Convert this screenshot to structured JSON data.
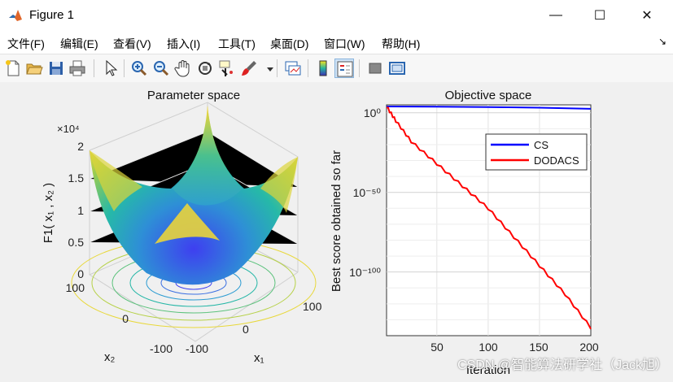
{
  "window": {
    "title": "Figure 1",
    "controls": {
      "minimize": "—",
      "maximize": "☐",
      "close": "✕"
    }
  },
  "menu": [
    {
      "label": "文件(F)"
    },
    {
      "label": "编辑(E)"
    },
    {
      "label": "查看(V)"
    },
    {
      "label": "插入(I)"
    },
    {
      "label": "工具(T)"
    },
    {
      "label": "桌面(D)"
    },
    {
      "label": "窗口(W)"
    },
    {
      "label": "帮助(H)"
    }
  ],
  "toolbar": [
    "new-figure-icon",
    "open-file-icon",
    "save-icon",
    "print-icon",
    "select-arrow-icon",
    "zoom-in-icon",
    "zoom-out-icon",
    "pan-hand-icon",
    "rotate-3d-icon",
    "data-cursor-icon",
    "brush-icon",
    "link-plot-icon",
    "colorbar-icon",
    "legend-icon",
    "hide-plot-tools-icon",
    "show-plot-tools-icon"
  ],
  "left_plot": {
    "title": "Parameter space",
    "zlabel": "F1( x₁ , x₂ )",
    "zscale_label": "×10⁴",
    "zticks": [
      "2",
      "1.5",
      "1",
      "0.5",
      "0"
    ],
    "x1_ticks": [
      "-100",
      "0",
      "100"
    ],
    "x2_ticks": [
      "100",
      "0",
      "-100"
    ],
    "x1_label": "x₁",
    "x2_label": "x₂"
  },
  "right_plot": {
    "title": "Objective space",
    "ylabel": "Best score obtained so far",
    "xlabel": "Iteration",
    "yticks": [
      "10⁰",
      "10⁻⁵⁰",
      "10⁻¹⁰⁰"
    ],
    "xticks": [
      "50",
      "100",
      "150",
      "200"
    ],
    "legend": [
      {
        "name": "CS",
        "color": "#0000ff"
      },
      {
        "name": "DODACS",
        "color": "#ff0000"
      }
    ]
  },
  "chart_data": [
    {
      "type": "surface",
      "title": "Parameter space",
      "function": "x1^2 + x2^2",
      "x1_range": [
        -100,
        100
      ],
      "x2_range": [
        -100,
        100
      ],
      "zlim": [
        0,
        20000
      ],
      "zlabel": "F1( x₁ , x₂ )",
      "colormap": "parula",
      "contours_at_base": true
    },
    {
      "type": "line",
      "title": "Objective space",
      "xlabel": "Iteration",
      "ylabel": "Best score obtained so far",
      "yscale": "log",
      "xlim": [
        1,
        200
      ],
      "ylim_exponent": [
        -140,
        5
      ],
      "grid": true,
      "legend_position": "top-right",
      "series": [
        {
          "name": "CS",
          "color": "#0000ff",
          "x": [
            1,
            50,
            100,
            150,
            200
          ],
          "log10_y": [
            4,
            3.9,
            3.6,
            3.2,
            2.5
          ]
        },
        {
          "name": "DODACS",
          "color": "#ff0000",
          "x": [
            1,
            10,
            25,
            50,
            75,
            100,
            125,
            150,
            175,
            200
          ],
          "log10_y": [
            4,
            -5,
            -18,
            -32,
            -46,
            -60,
            -78,
            -96,
            -114,
            -135
          ]
        }
      ]
    }
  ],
  "watermark": "CSDN @智能算法研学社（Jack旭）"
}
